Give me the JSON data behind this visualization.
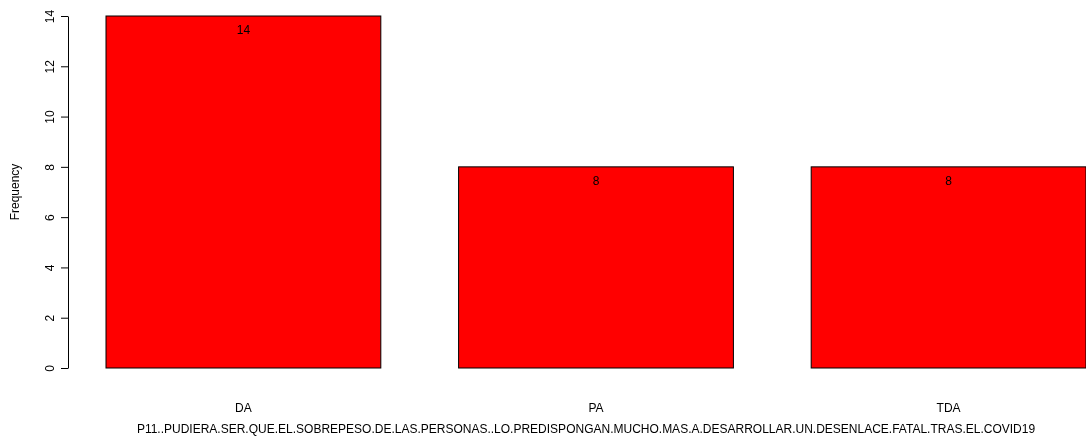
{
  "chart_data": {
    "type": "bar",
    "xlabel": "P11..PUDIERA.SER.QUE.EL.SOBREPESO.DE.LAS.PERSONAS..LO.PREDISPONGAN.MUCHO.MAS.A.DESARROLLAR.UN.DESENLACE.FATAL.TRAS.EL.COVID19",
    "ylabel": "Frequency",
    "categories": [
      "DA",
      "PA",
      "TDA"
    ],
    "values": [
      14,
      8,
      8
    ],
    "color": "#ff0000",
    "ylim": [
      0,
      14
    ],
    "yticks": [
      0,
      2,
      4,
      6,
      8,
      10,
      12,
      14
    ],
    "data_labels": true
  }
}
